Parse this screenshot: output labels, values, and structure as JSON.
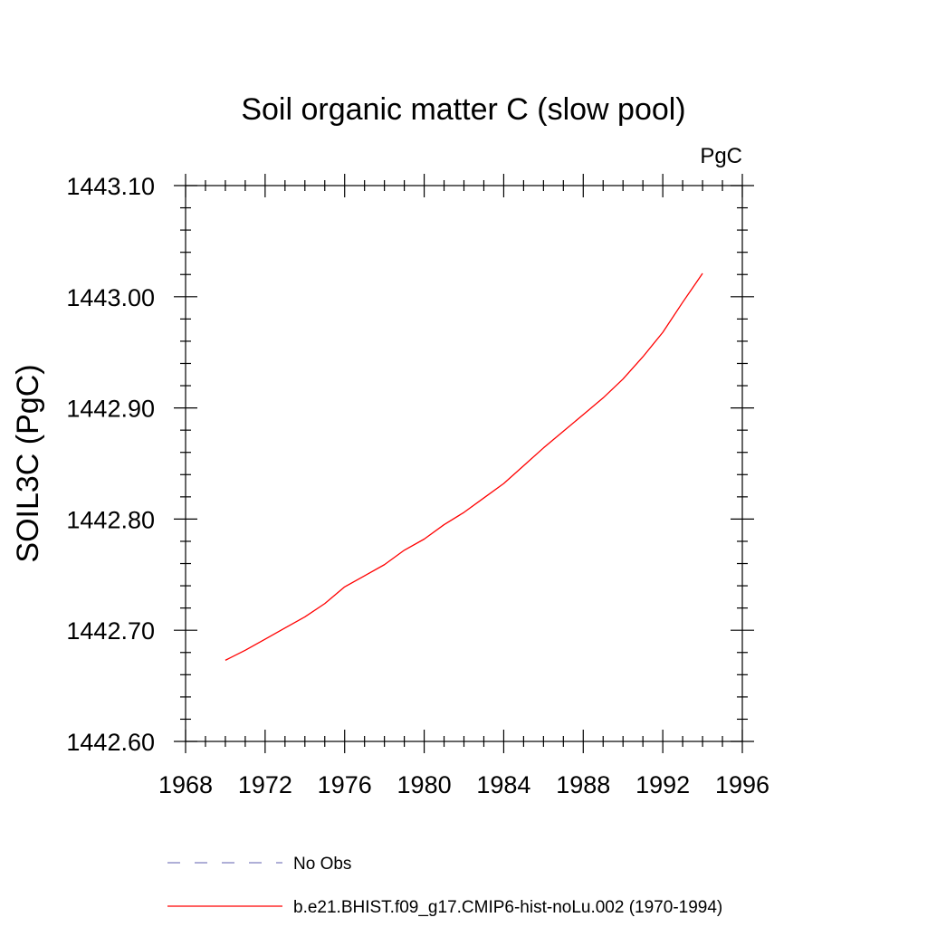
{
  "chart_data": {
    "type": "line",
    "title": "Soil organic matter C (slow pool)",
    "units_label": "PgC",
    "ylabel": "SOIL3C  (PgC)",
    "xlabel": "",
    "xlim": [
      1968,
      1996
    ],
    "ylim": [
      1442.6,
      1443.1
    ],
    "x_ticks": [
      1968,
      1972,
      1976,
      1980,
      1984,
      1988,
      1992,
      1996
    ],
    "x_tick_labels": [
      "1968",
      "1972",
      "1976",
      "1980",
      "1984",
      "1988",
      "1992",
      "1996"
    ],
    "y_ticks": [
      1442.6,
      1442.7,
      1442.8,
      1442.9,
      1443.0,
      1443.1
    ],
    "y_tick_labels": [
      "1442.60",
      "1442.70",
      "1442.80",
      "1442.90",
      "1443.00",
      "1443.10"
    ],
    "grid": false,
    "legend_position": "bottom",
    "series": [
      {
        "name": "b.e21.BHIST.f09_g17.CMIP6-hist-noLu.002 (1970-1994)",
        "color": "#ff0000",
        "line_style": "solid",
        "x": [
          1970,
          1971,
          1972,
          1973,
          1974,
          1975,
          1976,
          1977,
          1978,
          1979,
          1980,
          1981,
          1982,
          1983,
          1984,
          1985,
          1986,
          1987,
          1988,
          1989,
          1990,
          1991,
          1992,
          1993,
          1994
        ],
        "y": [
          1442.673,
          1442.682,
          1442.692,
          1442.702,
          1442.712,
          1442.724,
          1442.739,
          1442.749,
          1442.759,
          1442.772,
          1442.782,
          1442.795,
          1442.806,
          1442.819,
          1442.832,
          1442.848,
          1442.864,
          1442.879,
          1442.894,
          1442.909,
          1442.926,
          1442.946,
          1442.968,
          1442.995,
          1443.021
        ]
      }
    ],
    "legend": [
      {
        "label": "No Obs",
        "color": "#7f7fbf",
        "line_style": "dashed"
      },
      {
        "label": "b.e21.BHIST.f09_g17.CMIP6-hist-noLu.002 (1970-1994)",
        "color": "#ff0000",
        "line_style": "solid"
      }
    ]
  }
}
